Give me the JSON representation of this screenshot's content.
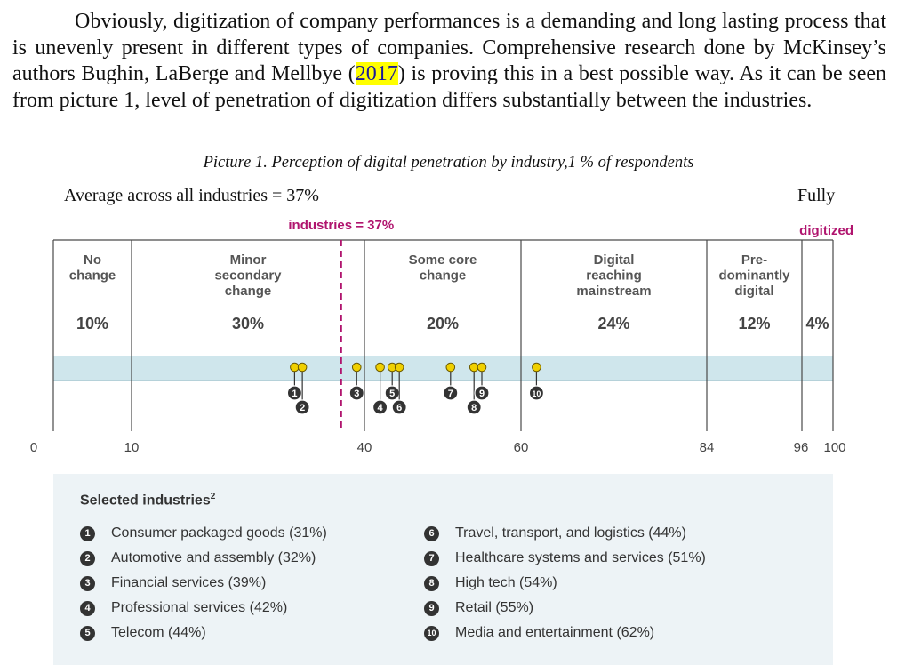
{
  "paragraph": {
    "before": "Obviously, digitization of company performances is a demanding and long lasting process that is unevenly present in different types of companies. Comprehensive research done by McKinsey’s authors Bughin, LaBerge and Mellbye (",
    "year": "2017",
    "after": ") is proving this in a best possible way. As it can be seen from picture 1, level of penetration of digitization differs substantially between the industries."
  },
  "caption": "Picture 1. Perception of digital penetration by industry,1 % of respondents",
  "average_label": "Average across all industries = 37%",
  "fully_label": "Fully",
  "industries_label": "industries = 37%",
  "digitized_label": "digitized",
  "colors": {
    "accent": "#b0146e",
    "band": "#cfe6ec",
    "grid": "#4a4a4a",
    "badge": "#333333",
    "pin": "#f0d000",
    "legend_bg": "#edf3f6"
  },
  "chart_data": {
    "type": "scatter",
    "xlim": [
      0,
      100
    ],
    "x_ticks": [
      "0",
      "10",
      "40",
      "60",
      "84",
      "96",
      "100"
    ],
    "average": 37,
    "categories": [
      {
        "label": [
          "No",
          "change"
        ],
        "share": "10%"
      },
      {
        "label": [
          "Minor",
          "secondary",
          "change"
        ],
        "share": "30%"
      },
      {
        "label": [
          "Some core",
          "change"
        ],
        "share": "20%"
      },
      {
        "label": [
          "Digital",
          "reaching",
          "mainstream"
        ],
        "share": "24%"
      },
      {
        "label": [
          "Pre-",
          "dominantly",
          "digital"
        ],
        "share": "12%"
      },
      {
        "label": [],
        "share": "4%"
      }
    ],
    "industries": [
      {
        "id": "1",
        "name": "Consumer packaged goods",
        "value": 31
      },
      {
        "id": "2",
        "name": "Automotive and assembly",
        "value": 32
      },
      {
        "id": "3",
        "name": "Financial services",
        "value": 39
      },
      {
        "id": "4",
        "name": "Professional services",
        "value": 42
      },
      {
        "id": "5",
        "name": "Telecom",
        "value": 44
      },
      {
        "id": "6",
        "name": "Travel, transport, and logistics",
        "value": 44
      },
      {
        "id": "7",
        "name": "Healthcare systems and services",
        "value": 51
      },
      {
        "id": "8",
        "name": "High tech",
        "value": 54
      },
      {
        "id": "9",
        "name": "Retail",
        "value": 55
      },
      {
        "id": "10",
        "name": "Media and entertainment",
        "value": 62
      }
    ]
  },
  "legend": {
    "title": "Selected industries",
    "title_sup": "2",
    "items": [
      {
        "num": "1",
        "text": "Consumer packaged goods (31%)"
      },
      {
        "num": "2",
        "text": "Automotive and assembly (32%)"
      },
      {
        "num": "3",
        "text": "Financial services (39%)"
      },
      {
        "num": "4",
        "text": "Professional services (42%)"
      },
      {
        "num": "5",
        "text": "Telecom (44%)"
      },
      {
        "num": "6",
        "text": "Travel, transport, and logistics (44%)"
      },
      {
        "num": "7",
        "text": "Healthcare systems and services (51%)"
      },
      {
        "num": "8",
        "text": "High tech (54%)"
      },
      {
        "num": "9",
        "text": "Retail (55%)"
      },
      {
        "num": "10",
        "text": "Media and entertainment (62%)"
      }
    ]
  }
}
